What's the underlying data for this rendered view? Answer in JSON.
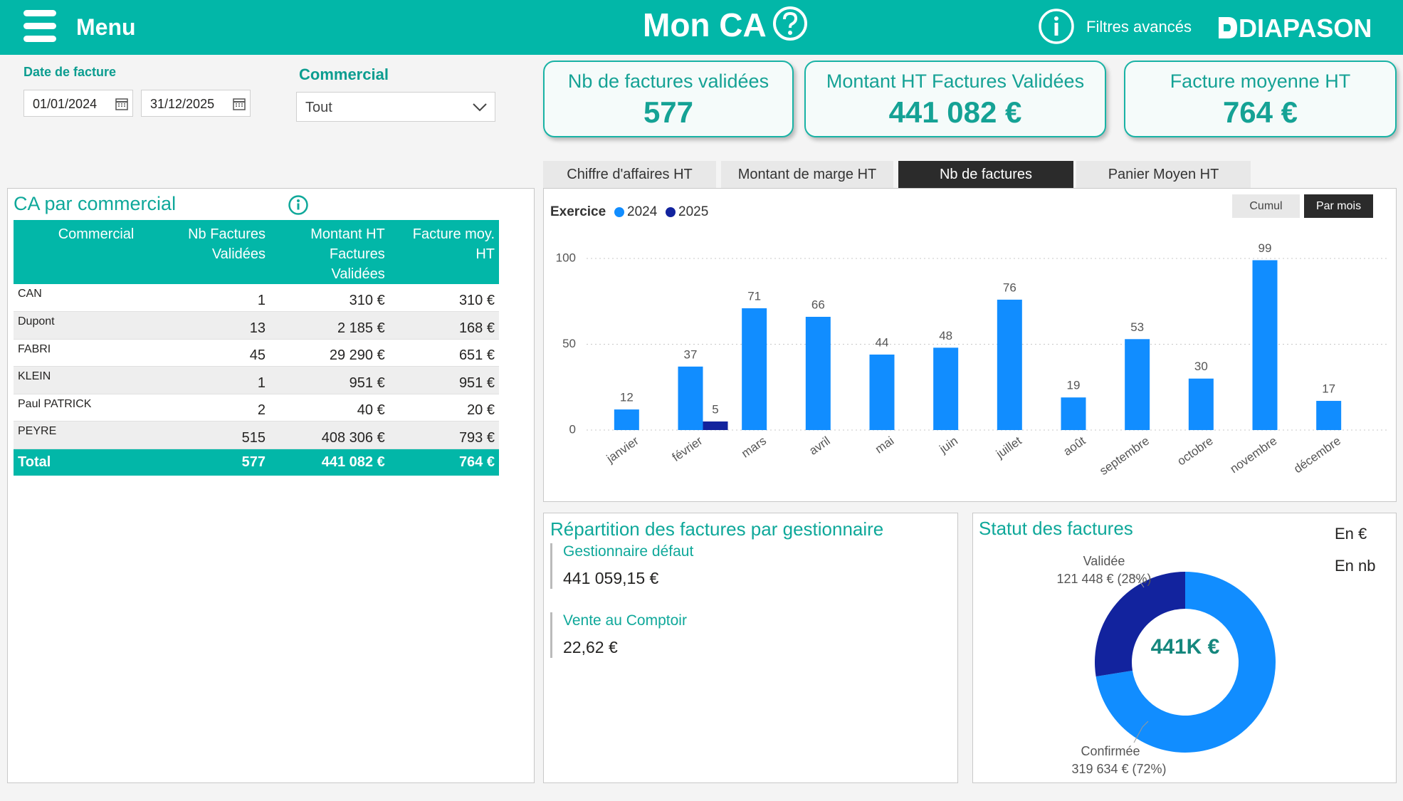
{
  "header": {
    "menu": "Menu",
    "title": "Mon CA",
    "filters": "Filtres avancés",
    "logo": "DIAPASON"
  },
  "filters": {
    "date_label": "Date de facture",
    "date_from": "01/01/2024",
    "date_to": "31/12/2025",
    "commercial_label": "Commercial",
    "commercial_value": "Tout"
  },
  "kpis": [
    {
      "label": "Nb de factures validées",
      "value": "577"
    },
    {
      "label": "Montant HT Factures Validées",
      "value": "441 082 €"
    },
    {
      "label": "Facture moyenne HT",
      "value": "764 €"
    }
  ],
  "tabs": [
    {
      "label": "Chiffre d'affaires HT",
      "active": false
    },
    {
      "label": "Montant de marge HT",
      "active": false
    },
    {
      "label": "Nb de factures",
      "active": true
    },
    {
      "label": "Panier Moyen HT",
      "active": false
    }
  ],
  "table": {
    "title": "CA par commercial",
    "columns": [
      "Commercial",
      "Nb Factures Validées",
      "Montant HT Factures Validées",
      "Facture moy. HT"
    ],
    "rows": [
      [
        "CAN",
        "1",
        "310 €",
        "310 €"
      ],
      [
        "Dupont",
        "13",
        "2 185 €",
        "168 €"
      ],
      [
        "FABRI",
        "45",
        "29 290 €",
        "651 €"
      ],
      [
        "KLEIN",
        "1",
        "951 €",
        "951 €"
      ],
      [
        "Paul PATRICK",
        "2",
        "40 €",
        "20 €"
      ],
      [
        "PEYRE",
        "515",
        "408 306 €",
        "793 €"
      ]
    ],
    "total": [
      "Total",
      "577",
      "441 082 €",
      "764 €"
    ]
  },
  "view_buttons": [
    {
      "label": "Cumul",
      "active": false
    },
    {
      "label": "Par mois",
      "active": true
    }
  ],
  "breakdown": {
    "title": "Répartition des factures par gestionnaire",
    "items": [
      {
        "label": "Gestionnaire défaut",
        "value": "441 059,15 €"
      },
      {
        "label": "Vente au Comptoir",
        "value": "22,62 €"
      }
    ]
  },
  "status_options": [
    {
      "label": "En €",
      "selected": true
    },
    {
      "label": "En nb",
      "selected": false
    }
  ],
  "chart_data": [
    {
      "type": "bar",
      "legend_title": "Exercice",
      "categories": [
        "janvier",
        "février",
        "mars",
        "avril",
        "mai",
        "juin",
        "juillet",
        "août",
        "septembre",
        "octobre",
        "novembre",
        "décembre"
      ],
      "series": [
        {
          "name": "2024",
          "color": "#118dff",
          "values": [
            12,
            37,
            71,
            66,
            44,
            48,
            76,
            19,
            53,
            30,
            99,
            17
          ]
        },
        {
          "name": "2025",
          "color": "#12239e",
          "values": [
            null,
            5,
            null,
            null,
            null,
            null,
            null,
            null,
            null,
            null,
            null,
            null
          ]
        }
      ],
      "ylim": [
        0,
        105
      ],
      "yticks": [
        0,
        50,
        100
      ],
      "grid": true
    },
    {
      "type": "donut",
      "title": "Statut des factures",
      "categories": [
        "Confirmée",
        "Validée"
      ],
      "values": [
        319634,
        121448
      ],
      "value_labels": [
        "319 634 € (72%)",
        "121 448 € (28%)"
      ],
      "colors": [
        "#118dff",
        "#12239e"
      ],
      "center_label": "441K €"
    }
  ]
}
